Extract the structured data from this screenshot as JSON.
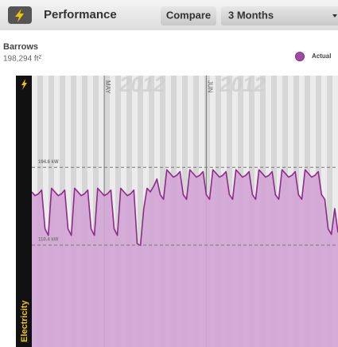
{
  "header": {
    "title": "Performance",
    "compare_button": "Compare",
    "range_select": "3 Months"
  },
  "building": {
    "name": "Barrows",
    "area": "198,294 ft²"
  },
  "side_label": "Electricity",
  "chart_data": {
    "type": "area",
    "watermarks": [
      "2012",
      "2012"
    ],
    "x": [
      0,
      1,
      2,
      3,
      4,
      5,
      6,
      7,
      8,
      9,
      10,
      11,
      12,
      13,
      14,
      15,
      16,
      17,
      18,
      19,
      20,
      21,
      22,
      23,
      24,
      25,
      26,
      27,
      28,
      29,
      30,
      31,
      32,
      33,
      34,
      35,
      36,
      37,
      38,
      39,
      40,
      41,
      42,
      43,
      44,
      45,
      46,
      47,
      48,
      49,
      50,
      51,
      52,
      53,
      54,
      55,
      56,
      57,
      58,
      59,
      60,
      61,
      62,
      63,
      64,
      65,
      66,
      67,
      68,
      69,
      70,
      71,
      72,
      73,
      74,
      75,
      76,
      77,
      78,
      79,
      80,
      81,
      82,
      83,
      84,
      85,
      86,
      87,
      88,
      89,
      90,
      91,
      92,
      93
    ],
    "xlim": [
      0,
      93
    ],
    "xticks": [
      {
        "value": 22,
        "label": "MAY"
      },
      {
        "value": 53,
        "label": "JUN"
      }
    ],
    "ylim": [
      0,
      294
    ],
    "reference_lines": [
      {
        "value": 194.6,
        "label": "194.6 kW"
      },
      {
        "value": 110.4,
        "label": "110.4 kW"
      }
    ],
    "series": [
      {
        "name": "Actual",
        "color": "#8e2a8a",
        "fill": "#d3a5d5",
        "values": [
          168,
          164,
          166,
          170,
          128,
          121,
          172,
          168,
          164,
          166,
          170,
          128,
          121,
          172,
          168,
          164,
          166,
          170,
          128,
          121,
          172,
          168,
          164,
          166,
          170,
          128,
          121,
          172,
          168,
          164,
          166,
          170,
          112,
          110,
          150,
          172,
          168,
          174,
          182,
          165,
          160,
          192,
          188,
          184,
          186,
          190,
          165,
          160,
          192,
          188,
          184,
          186,
          190,
          165,
          160,
          192,
          188,
          184,
          186,
          190,
          165,
          160,
          192,
          188,
          184,
          186,
          190,
          165,
          160,
          192,
          188,
          184,
          186,
          190,
          165,
          160,
          192,
          188,
          184,
          186,
          190,
          165,
          160,
          192,
          188,
          184,
          186,
          190,
          165,
          160,
          128,
          122,
          150,
          124
        ]
      }
    ]
  }
}
